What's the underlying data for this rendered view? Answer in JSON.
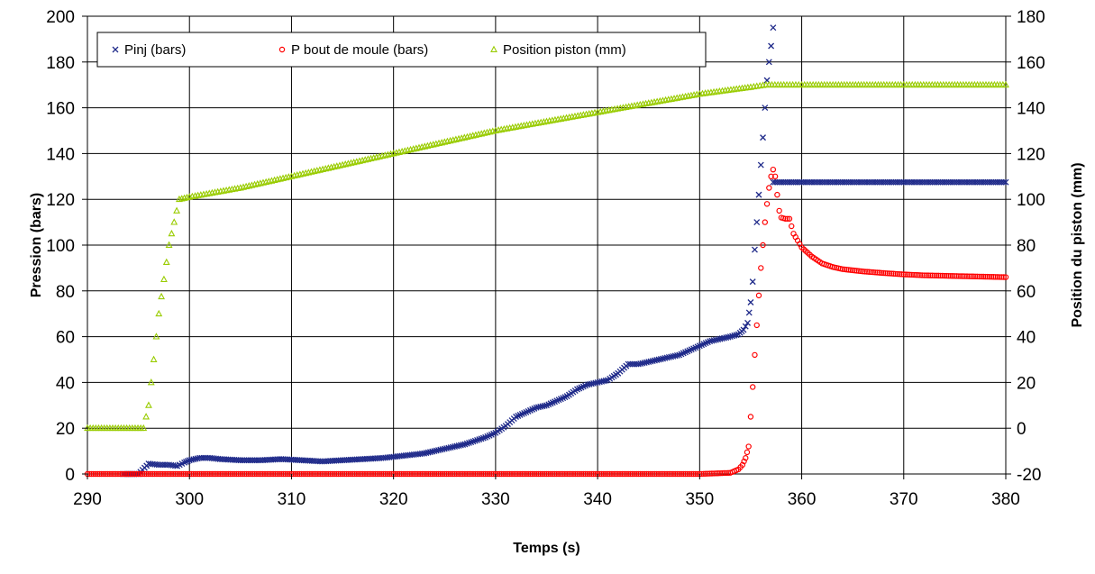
{
  "chart_data": {
    "type": "scatter",
    "xlabel": "Temps (s)",
    "ylabel": "Pression (bars)",
    "y2label": "Position du piston (mm)",
    "xlim": [
      290,
      380
    ],
    "ylim": [
      0,
      200
    ],
    "y2lim": [
      -20,
      180
    ],
    "xticks": [
      "290",
      "300",
      "310",
      "320",
      "330",
      "340",
      "350",
      "360",
      "370",
      "380"
    ],
    "yticks": [
      "0",
      "20",
      "40",
      "60",
      "80",
      "100",
      "120",
      "140",
      "160",
      "180",
      "200"
    ],
    "y2ticks": [
      "-20",
      "0",
      "20",
      "40",
      "60",
      "80",
      "100",
      "120",
      "140",
      "160",
      "180"
    ],
    "grid": true,
    "legend_position": "top-left",
    "series": [
      {
        "name": "Pinj (bars)",
        "axis": "left",
        "marker": "x",
        "color": "#1f2a8a",
        "x": [
          293.5,
          295,
          296,
          297,
          298,
          298.8,
          299.5,
          300,
          301,
          302,
          303,
          305,
          307,
          309,
          311,
          313,
          315,
          317,
          319,
          321,
          323,
          325,
          327,
          329,
          330,
          331,
          332,
          333,
          334,
          335,
          336,
          337,
          338,
          339,
          340,
          341,
          342,
          343,
          344,
          345,
          346,
          347,
          348,
          349,
          350,
          351,
          352,
          353,
          353.8,
          354.3,
          354.7,
          355,
          355.2,
          355.4,
          355.6,
          355.8,
          356,
          356.2,
          356.4,
          356.6,
          356.8,
          357,
          357.2
        ],
        "y": [
          0,
          0,
          4.5,
          4,
          4,
          3.5,
          5,
          6,
          7,
          7,
          6.5,
          6,
          6,
          6.5,
          6,
          5.5,
          6,
          6.5,
          7,
          8,
          9,
          11,
          13,
          16,
          18,
          21,
          25,
          27,
          29,
          30,
          32,
          34,
          37,
          39,
          40,
          41,
          44,
          48,
          48,
          49,
          50,
          51,
          52,
          54,
          56,
          58,
          59,
          60,
          61,
          63,
          66,
          75,
          84,
          98,
          110,
          122,
          135,
          147,
          160,
          172,
          180,
          187,
          195
        ],
        "x_plateau": [
          357.2,
          380
        ],
        "y_plateau": 127.5
      },
      {
        "name": "P bout de moule (bars)",
        "axis": "left",
        "marker": "o",
        "color": "#ff0000",
        "x": [
          290,
          295,
          296,
          298,
          299,
          300,
          310,
          320,
          330,
          340,
          350,
          353,
          353.8,
          354.2,
          354.5,
          354.8,
          355,
          355.2,
          355.4,
          355.6,
          355.8,
          356,
          356.2,
          356.4,
          356.6,
          356.8,
          357,
          357.2,
          357.4,
          357.6,
          357.8,
          358,
          358.4,
          358.8,
          359.2,
          359.6,
          360,
          361,
          362,
          363,
          364,
          365,
          366,
          368,
          370,
          372,
          375,
          378,
          380
        ],
        "y": [
          0,
          0,
          0,
          0,
          0,
          0,
          0,
          0,
          0,
          0,
          0,
          0.5,
          2,
          4,
          7,
          12,
          25,
          38,
          52,
          65,
          78,
          90,
          100,
          110,
          118,
          125,
          130,
          133,
          130,
          122,
          115,
          112,
          111.5,
          111.5,
          105,
          102,
          99,
          95,
          92,
          90.5,
          89.5,
          89,
          88.5,
          87.8,
          87.2,
          86.8,
          86.5,
          86.2,
          86
        ]
      },
      {
        "name": "Position piston (mm)",
        "axis": "right",
        "marker": "triangle",
        "color": "#99cc00",
        "x": [
          290,
          295.5,
          296,
          297,
          298,
          299,
          300,
          305,
          310,
          315,
          320,
          325,
          330,
          335,
          340,
          345,
          350,
          355,
          356.5,
          360,
          365,
          370,
          375,
          380
        ],
        "y": [
          0,
          0,
          10,
          50,
          80,
          100,
          101,
          105,
          110,
          115,
          120,
          125,
          130,
          134,
          138,
          142,
          146,
          149,
          150,
          150,
          150,
          150,
          150,
          150
        ]
      }
    ]
  }
}
